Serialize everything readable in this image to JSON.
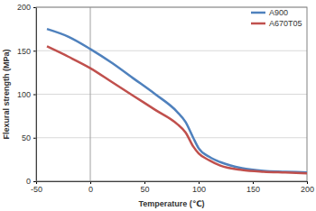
{
  "chart_data": {
    "type": "line",
    "x_label": "Temperature (℃)",
    "y_label": "Flexural strength (MPa)",
    "x": [
      -40,
      -20,
      0,
      20,
      40,
      60,
      80,
      88,
      95,
      100,
      110,
      120,
      140,
      160,
      180,
      200
    ],
    "series": [
      {
        "name": "A900",
        "color": "#4f81bd",
        "values": [
          175,
          166,
          152,
          136,
          118,
          100,
          80,
          68,
          50,
          38,
          28,
          22,
          15,
          12,
          11,
          10
        ]
      },
      {
        "name": "A670T05",
        "color": "#c0504d",
        "values": [
          155,
          143,
          130,
          114,
          98,
          82,
          66,
          56,
          40,
          32,
          24,
          18,
          13,
          11,
          10,
          9
        ]
      }
    ],
    "xlim": [
      -50,
      200
    ],
    "xticks": [
      -50,
      0,
      50,
      100,
      150,
      200
    ],
    "ylim": [
      0,
      200
    ],
    "yticks": [
      0,
      50,
      100,
      150,
      200
    ],
    "grid": true,
    "legend": "upper right"
  }
}
